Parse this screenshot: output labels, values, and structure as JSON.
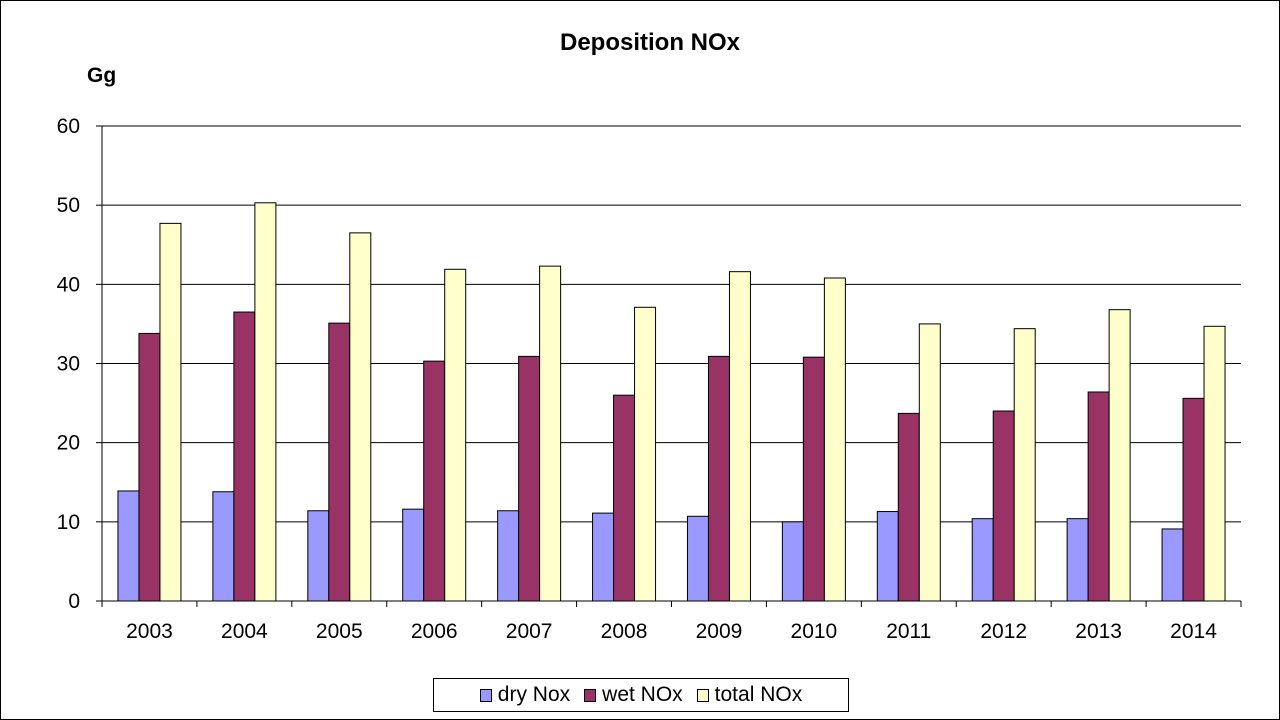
{
  "chart_data": {
    "type": "bar",
    "title": "Deposition NOx",
    "ylabel": "Gg",
    "xlabel": "",
    "categories": [
      "2003",
      "2004",
      "2005",
      "2006",
      "2007",
      "2008",
      "2009",
      "2010",
      "2011",
      "2012",
      "2013",
      "2014"
    ],
    "series": [
      {
        "name": "dry Nox",
        "color": "#9999ff",
        "values": [
          13.9,
          13.8,
          11.4,
          11.6,
          11.4,
          11.1,
          10.7,
          10.0,
          11.3,
          10.4,
          10.4,
          9.1
        ]
      },
      {
        "name": "wet NOx",
        "color": "#993366",
        "values": [
          33.8,
          36.5,
          35.1,
          30.3,
          30.9,
          26.0,
          30.9,
          30.8,
          23.7,
          24.0,
          26.4,
          25.6
        ]
      },
      {
        "name": "total NOx",
        "color": "#ffffcc",
        "values": [
          47.7,
          50.3,
          46.5,
          41.9,
          42.3,
          37.1,
          41.6,
          40.8,
          35.0,
          34.4,
          36.8,
          34.7
        ]
      }
    ],
    "ylim": [
      0,
      60
    ],
    "yticks": [
      0,
      10,
      20,
      30,
      40,
      50,
      60
    ],
    "grid": true,
    "legend_position": "bottom"
  }
}
